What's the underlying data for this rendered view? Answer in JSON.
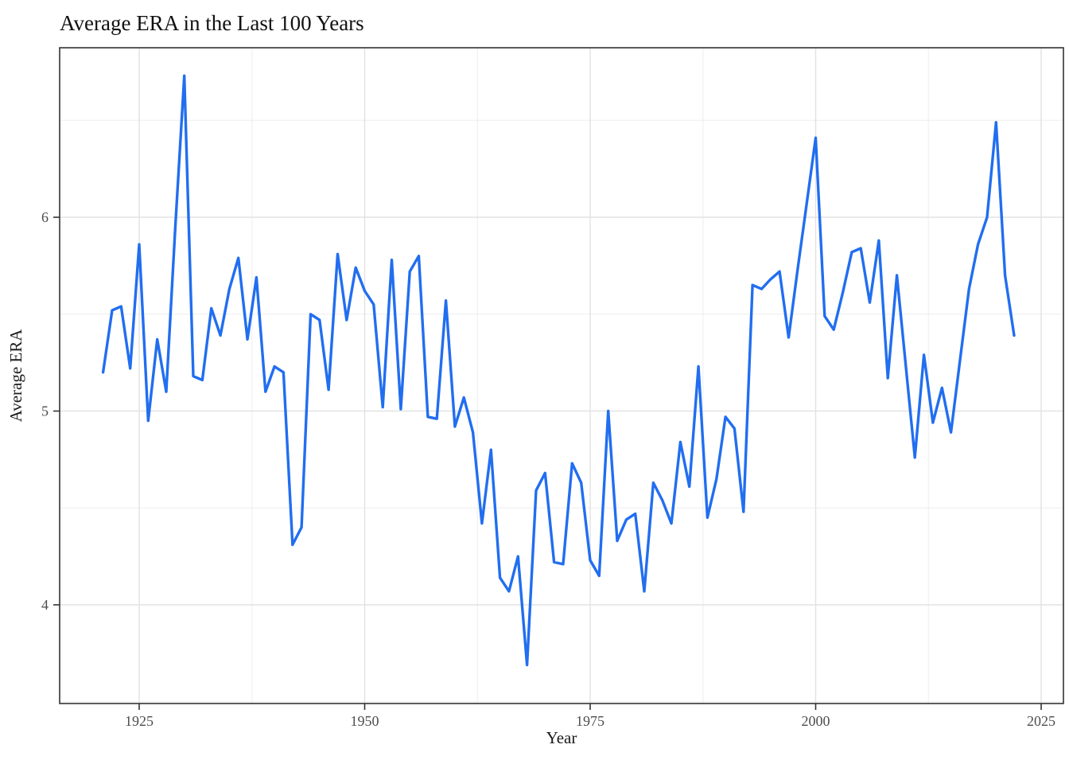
{
  "title": "Average ERA in the Last 100 Years",
  "chart_data": {
    "type": "line",
    "title": "Average ERA in the Last 100 Years",
    "xlabel": "Year",
    "ylabel": "Average ERA",
    "grid": true,
    "legend": false,
    "line_color": "#216EF0",
    "xlim": [
      1916.2,
      2027.3
    ],
    "ylim": [
      3.49,
      6.88
    ],
    "x_tick_labels": [
      "1925",
      "1950",
      "1975",
      "2000",
      "2025"
    ],
    "x_ticks": [
      1925,
      1950,
      1975,
      2000,
      2025
    ],
    "x_minor_ticks": [
      1937.5,
      1962.5,
      1987.5,
      2012.5
    ],
    "y_tick_labels": [
      "4",
      "5",
      "6"
    ],
    "y_ticks": [
      4,
      5,
      6
    ],
    "y_minor_ticks": [
      3.5,
      4.5,
      5.5,
      6.5
    ],
    "series": [
      {
        "name": "Average ERA",
        "x": [
          1921,
          1922,
          1923,
          1924,
          1925,
          1926,
          1927,
          1928,
          1929,
          1930,
          1931,
          1932,
          1933,
          1934,
          1935,
          1936,
          1937,
          1938,
          1939,
          1940,
          1941,
          1942,
          1943,
          1944,
          1945,
          1946,
          1947,
          1948,
          1949,
          1950,
          1951,
          1952,
          1953,
          1954,
          1955,
          1956,
          1957,
          1958,
          1959,
          1960,
          1961,
          1962,
          1963,
          1964,
          1965,
          1966,
          1967,
          1968,
          1969,
          1970,
          1971,
          1972,
          1973,
          1974,
          1975,
          1976,
          1977,
          1978,
          1979,
          1980,
          1981,
          1982,
          1983,
          1984,
          1985,
          1986,
          1987,
          1988,
          1989,
          1990,
          1991,
          1992,
          1993,
          1994,
          1995,
          1996,
          1997,
          1998,
          1999,
          2000,
          2001,
          2002,
          2003,
          2004,
          2005,
          2006,
          2007,
          2008,
          2009,
          2010,
          2011,
          2012,
          2013,
          2014,
          2015,
          2016,
          2017,
          2018,
          2019,
          2020,
          2021,
          2022
        ],
        "y": [
          5.2,
          5.52,
          5.54,
          5.22,
          5.86,
          4.95,
          5.37,
          5.1,
          5.95,
          6.73,
          5.18,
          5.16,
          5.53,
          5.39,
          5.63,
          5.79,
          5.37,
          5.69,
          5.1,
          5.23,
          5.2,
          4.31,
          4.4,
          5.5,
          5.47,
          5.11,
          5.81,
          5.47,
          5.74,
          5.62,
          5.55,
          5.02,
          5.78,
          5.01,
          5.72,
          5.8,
          4.97,
          4.96,
          5.57,
          4.92,
          5.07,
          4.89,
          4.42,
          4.8,
          4.14,
          4.07,
          4.25,
          3.69,
          4.59,
          4.68,
          4.22,
          4.21,
          4.73,
          4.63,
          4.23,
          4.15,
          5.0,
          4.33,
          4.44,
          4.47,
          4.07,
          4.63,
          4.54,
          4.42,
          4.84,
          4.61,
          5.23,
          4.45,
          4.65,
          4.97,
          4.91,
          4.48,
          5.65,
          5.63,
          5.68,
          5.72,
          5.38,
          5.73,
          6.07,
          6.41,
          5.49,
          5.42,
          5.61,
          5.82,
          5.84,
          5.56,
          5.88,
          5.17,
          5.7,
          5.23,
          4.76,
          5.29,
          4.94,
          5.12,
          4.89,
          5.26,
          5.63,
          5.86,
          6.0,
          6.49,
          5.7,
          5.39
        ]
      }
    ]
  },
  "colors": {
    "line": "#216EF0",
    "panel_border": "#333333",
    "grid_major": "#e2e2e2",
    "grid_minor": "#ededed",
    "tick": "#333333",
    "tick_text": "#4d4d4d",
    "background": "#ffffff"
  }
}
